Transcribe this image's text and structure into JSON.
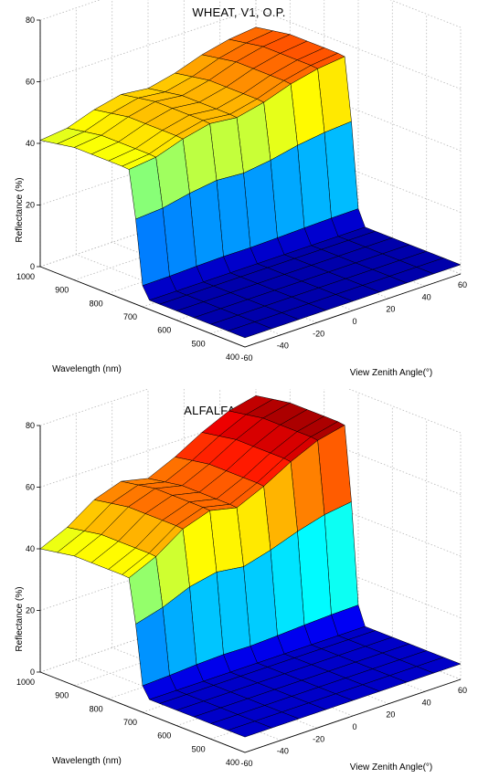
{
  "chart_data": [
    {
      "type": "surface",
      "title": "WHEAT, V1, O.P.",
      "xlabel": "Wavelength (nm)",
      "ylabel": "View Zenith Angle(°)",
      "zlabel": "Reflectance (%)",
      "x_ticks": [
        "1000",
        "900",
        "800",
        "700",
        "600",
        "500",
        "400"
      ],
      "y_ticks": [
        "-60",
        "-40",
        "-20",
        "0",
        "20",
        "40",
        "60"
      ],
      "z_ticks": [
        "0",
        "20",
        "40",
        "60",
        "80"
      ],
      "xlim": [
        400,
        1000
      ],
      "ylim": [
        -60,
        60
      ],
      "zlim": [
        0,
        80
      ],
      "grid": true,
      "colormap": "jet",
      "wavelength": [
        400,
        450,
        500,
        550,
        600,
        650,
        680,
        700,
        720,
        740,
        760,
        800,
        850,
        900,
        950,
        1000
      ],
      "view_zenith": [
        -60,
        -45,
        -30,
        -15,
        0,
        15,
        30,
        45,
        60
      ],
      "reflectance_nir_by_angle": [
        43,
        44,
        47,
        49,
        48,
        50,
        53,
        55,
        56
      ],
      "reflectance_visible": 3
    },
    {
      "type": "surface",
      "title": "ALFALFA, V17, O.P.",
      "xlabel": "Wavelength (nm)",
      "ylabel": "View Zenith Angle(°)",
      "zlabel": "Reflectance (%)",
      "x_ticks": [
        "1000",
        "900",
        "800",
        "700",
        "600",
        "500",
        "400"
      ],
      "y_ticks": [
        "-60",
        "-40",
        "-20",
        "0",
        "20",
        "40",
        "60"
      ],
      "z_ticks": [
        "0",
        "20",
        "40",
        "60",
        "80"
      ],
      "xlim": [
        400,
        1000
      ],
      "ylim": [
        -60,
        60
      ],
      "zlim": [
        0,
        80
      ],
      "grid": true,
      "colormap": "jet",
      "wavelength": [
        400,
        450,
        500,
        550,
        600,
        650,
        680,
        700,
        720,
        740,
        760,
        800,
        850,
        900,
        950,
        1000
      ],
      "view_zenith": [
        -60,
        -45,
        -30,
        -15,
        0,
        15,
        30,
        45,
        60
      ],
      "reflectance_nir_by_angle": [
        42,
        46,
        52,
        55,
        53,
        57,
        62,
        66,
        68
      ],
      "reflectance_visible": 5
    }
  ]
}
